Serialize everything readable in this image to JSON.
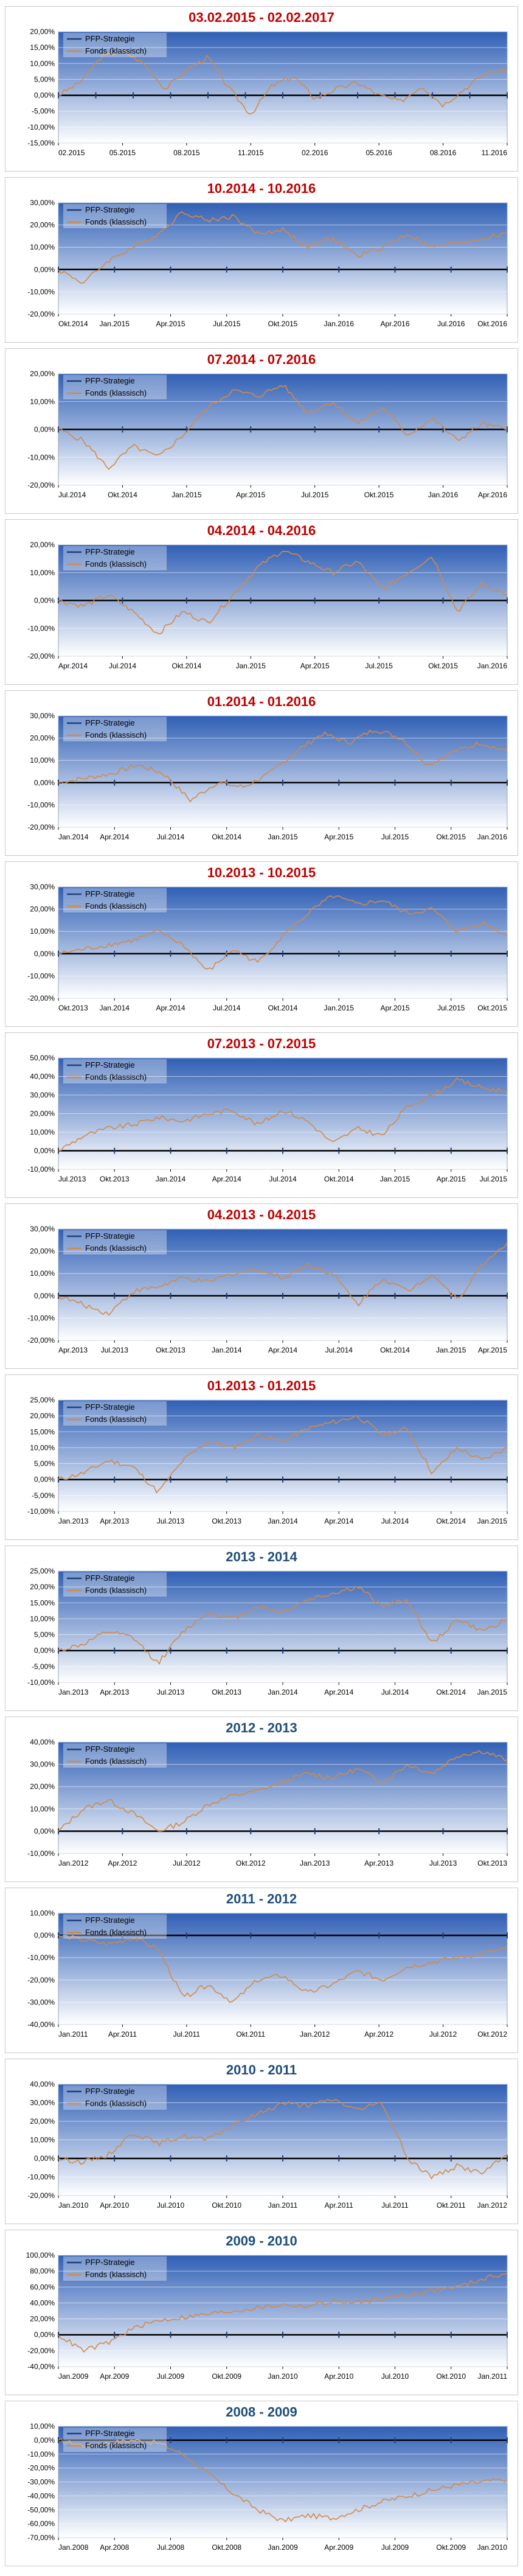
{
  "colors": {
    "title_red": "#c00000",
    "title_blue": "#1f4e79",
    "pfp_line": "#1f3f7a",
    "fonds_line": "#d08a4a",
    "plot_bg_top": "#2f5fb5",
    "plot_bg_bottom": "#ffffff",
    "zero_axis": "#000000"
  },
  "legend": {
    "pfp_label": "PFP-Strategie",
    "fonds_label": "Fonds (klassisch)"
  },
  "chart_data": [
    {
      "type": "line",
      "title": "03.02.2015 - 02.02.2017",
      "title_color": "red",
      "yticks": [
        "20,00%",
        "15,00%",
        "10,00%",
        "5,00%",
        "0,00%",
        "-5,00%",
        "-10,00%",
        "-15,00%"
      ],
      "ylim": [
        -15,
        20
      ],
      "xticks": [
        "02.2015",
        "05.2015",
        "08.2015",
        "11.2015",
        "02.2016",
        "05.2016",
        "08.2016",
        "11.2016"
      ],
      "series": [
        {
          "name": "PFP-Strategie",
          "values": [
            0,
            0,
            0,
            0,
            0,
            0,
            0,
            0,
            0,
            0,
            0,
            0,
            0
          ]
        },
        {
          "name": "Fonds (klassisch)",
          "values": [
            0,
            4,
            12,
            14,
            10,
            2,
            8,
            12,
            2,
            -6,
            3,
            6,
            -1,
            2,
            4,
            0,
            -2,
            3,
            -3,
            2,
            7,
            8
          ]
        }
      ]
    },
    {
      "type": "line",
      "title": "10.2014 - 10.2016",
      "title_color": "red",
      "yticks": [
        "30,00%",
        "20,00%",
        "10,00%",
        "0,00%",
        "-10,00%",
        "-20,00%"
      ],
      "ylim": [
        -20,
        30
      ],
      "xticks": [
        "Okt.2014",
        "Jan.2015",
        "Apr.2015",
        "Jul.2015",
        "Okt.2015",
        "Jan.2016",
        "Apr.2016",
        "Jul.2016",
        "Okt.2016"
      ],
      "series": [
        {
          "name": "PFP-Strategie",
          "values": [
            0,
            0,
            0,
            0,
            0,
            0,
            0,
            0,
            0
          ]
        },
        {
          "name": "Fonds (klassisch)",
          "values": [
            0,
            -6,
            4,
            10,
            16,
            26,
            22,
            24,
            16,
            18,
            10,
            14,
            6,
            10,
            16,
            10,
            12,
            14,
            16
          ]
        }
      ]
    },
    {
      "type": "line",
      "title": "07.2014 - 07.2016",
      "title_color": "red",
      "yticks": [
        "20,00%",
        "10,00%",
        "0,00%",
        "-10,00%",
        "-20,00%"
      ],
      "ylim": [
        -20,
        20
      ],
      "xticks": [
        "Jul.2014",
        "Okt.2014",
        "Jan.2015",
        "Apr.2015",
        "Jul.2015",
        "Okt.2015",
        "Jan.2016",
        "Apr.2016"
      ],
      "series": [
        {
          "name": "PFP-Strategie",
          "values": [
            0,
            0,
            0,
            0,
            0,
            0,
            0,
            0
          ]
        },
        {
          "name": "Fonds (klassisch)",
          "values": [
            0,
            -4,
            -14,
            -6,
            -10,
            -2,
            8,
            14,
            12,
            16,
            6,
            10,
            2,
            8,
            -2,
            4,
            -4,
            2,
            0
          ]
        }
      ]
    },
    {
      "type": "line",
      "title": "04.2014 - 04.2016",
      "title_color": "red",
      "yticks": [
        "20,00%",
        "10,00%",
        "0,00%",
        "-10,00%",
        "-20,00%"
      ],
      "ylim": [
        -20,
        20
      ],
      "xticks": [
        "Apr.2014",
        "Jul.2014",
        "Okt.2014",
        "Jan.2015",
        "Apr.2015",
        "Jul.2015",
        "Okt.2015",
        "Jan.2016"
      ],
      "series": [
        {
          "name": "PFP-Strategie",
          "values": [
            0,
            0,
            0,
            0,
            0,
            0,
            0,
            0
          ]
        },
        {
          "name": "Fonds (klassisch)",
          "values": [
            0,
            -2,
            2,
            -4,
            -12,
            -4,
            -8,
            2,
            12,
            18,
            14,
            10,
            14,
            4,
            10,
            16,
            -4,
            6,
            2
          ]
        }
      ]
    },
    {
      "type": "line",
      "title": "01.2014 - 01.2016",
      "title_color": "red",
      "yticks": [
        "30,00%",
        "20,00%",
        "10,00%",
        "0,00%",
        "-10,00%",
        "-20,00%"
      ],
      "ylim": [
        -20,
        30
      ],
      "xticks": [
        "Jan.2014",
        "Apr.2014",
        "Jul.2014",
        "Okt.2014",
        "Jan.2015",
        "Apr.2015",
        "Jul.2015",
        "Okt.2015",
        "Jan.2016"
      ],
      "series": [
        {
          "name": "PFP-Strategie",
          "values": [
            0,
            0,
            0,
            0,
            0,
            0,
            0,
            0,
            0
          ]
        },
        {
          "name": "Fonds (klassisch)",
          "values": [
            0,
            2,
            4,
            8,
            4,
            -8,
            0,
            -2,
            4,
            14,
            22,
            18,
            24,
            20,
            8,
            14,
            18,
            14
          ]
        }
      ]
    },
    {
      "type": "line",
      "title": "10.2013 - 10.2015",
      "title_color": "red",
      "yticks": [
        "30,00%",
        "20,00%",
        "10,00%",
        "0,00%",
        "-10,00%",
        "-20,00%"
      ],
      "ylim": [
        -20,
        30
      ],
      "xticks": [
        "Okt.2013",
        "Jan.2014",
        "Apr.2014",
        "Jul.2014",
        "Okt.2014",
        "Jan.2015",
        "Apr.2015",
        "Jul.2015",
        "Okt.2015"
      ],
      "series": [
        {
          "name": "PFP-Strategie",
          "values": [
            0,
            0,
            0,
            0,
            0,
            0,
            0,
            0,
            0
          ]
        },
        {
          "name": "Fonds (klassisch)",
          "values": [
            0,
            2,
            4,
            6,
            10,
            4,
            -8,
            2,
            -4,
            8,
            18,
            26,
            22,
            24,
            18,
            20,
            10,
            14,
            8
          ]
        }
      ]
    },
    {
      "type": "line",
      "title": "07.2013 - 07.2015",
      "title_color": "red",
      "yticks": [
        "50,00%",
        "40,00%",
        "30,00%",
        "20,00%",
        "10,00%",
        "0,00%",
        "-10,00%"
      ],
      "ylim": [
        -10,
        50
      ],
      "xticks": [
        "Jul.2013",
        "Okt.2013",
        "Jan.2014",
        "Apr.2014",
        "Jul.2014",
        "Okt.2014",
        "Jan.2015",
        "Apr.2015",
        "Jul.2015"
      ],
      "series": [
        {
          "name": "PFP-Strategie",
          "values": [
            0,
            0,
            0,
            0,
            0,
            0,
            0,
            0,
            0
          ]
        },
        {
          "name": "Fonds (klassisch)",
          "values": [
            0,
            8,
            12,
            14,
            18,
            16,
            20,
            22,
            14,
            22,
            16,
            4,
            12,
            8,
            24,
            30,
            38,
            34,
            32
          ]
        }
      ]
    },
    {
      "type": "line",
      "title": "04.2013 - 04.2015",
      "title_color": "red",
      "yticks": [
        "30,00%",
        "20,00%",
        "10,00%",
        "0,00%",
        "-10,00%",
        "-20,00%"
      ],
      "ylim": [
        -20,
        30
      ],
      "xticks": [
        "Apr.2013",
        "Jul.2013",
        "Okt.2013",
        "Jan.2014",
        "Apr.2014",
        "Jul.2014",
        "Okt.2014",
        "Jan.2015",
        "Apr.2015"
      ],
      "series": [
        {
          "name": "PFP-Strategie",
          "values": [
            0,
            0,
            0,
            0,
            0,
            0,
            0,
            0,
            0
          ]
        },
        {
          "name": "Fonds (klassisch)",
          "values": [
            0,
            -4,
            -8,
            2,
            4,
            8,
            6,
            10,
            12,
            8,
            14,
            10,
            -4,
            8,
            2,
            10,
            -2,
            14,
            24
          ]
        }
      ]
    },
    {
      "type": "line",
      "title": "01.2013 - 01.2015",
      "title_color": "red",
      "yticks": [
        "25,00%",
        "20,00%",
        "15,00%",
        "10,00%",
        "5,00%",
        "0,00%",
        "-5,00%",
        "-10,00%"
      ],
      "ylim": [
        -10,
        25
      ],
      "xticks": [
        "Jan.2013",
        "Apr.2013",
        "Jul.2013",
        "Okt.2013",
        "Jan.2014",
        "Apr.2014",
        "Jul.2014",
        "Okt.2014",
        "Jan.2015"
      ],
      "series": [
        {
          "name": "PFP-Strategie",
          "values": [
            0,
            0,
            0,
            0,
            0,
            0,
            0,
            0,
            0
          ]
        },
        {
          "name": "Fonds (klassisch)",
          "values": [
            0,
            2,
            6,
            4,
            -4,
            6,
            12,
            10,
            14,
            12,
            16,
            18,
            20,
            14,
            16,
            2,
            10,
            6,
            10
          ]
        }
      ]
    },
    {
      "type": "line",
      "title": "2013 - 2014",
      "title_color": "blue",
      "yticks": [
        "25,00%",
        "20,00%",
        "15,00%",
        "10,00%",
        "5,00%",
        "0,00%",
        "-5,00%",
        "-10,00%"
      ],
      "ylim": [
        -10,
        25
      ],
      "xticks": [
        "Jan.2013",
        "Apr.2013",
        "Jul.2013",
        "Okt.2013",
        "Jan.2014",
        "Apr.2014",
        "Jul.2014",
        "Okt.2014",
        "Jan.2015"
      ],
      "series": [
        {
          "name": "PFP-Strategie",
          "values": [
            0,
            0,
            0,
            0,
            0,
            0,
            0,
            0,
            0
          ]
        },
        {
          "name": "Fonds (klassisch)",
          "values": [
            0,
            2,
            6,
            4,
            -4,
            6,
            12,
            10,
            14,
            12,
            16,
            18,
            20,
            14,
            16,
            2,
            10,
            6,
            10
          ]
        }
      ]
    },
    {
      "type": "line",
      "title": "2012 - 2013",
      "title_color": "blue",
      "yticks": [
        "40,00%",
        "30,00%",
        "20,00%",
        "10,00%",
        "0,00%",
        "-10,00%"
      ],
      "ylim": [
        -10,
        40
      ],
      "xticks": [
        "Jan.2012",
        "Apr.2012",
        "Jul.2012",
        "Okt.2012",
        "Jan.2013",
        "Apr.2013",
        "Jul.2013",
        "Okt.2013"
      ],
      "series": [
        {
          "name": "PFP-Strategie",
          "values": [
            0,
            0,
            0,
            0,
            0,
            0,
            0,
            0
          ]
        },
        {
          "name": "Fonds (klassisch)",
          "values": [
            0,
            10,
            14,
            8,
            0,
            4,
            12,
            16,
            18,
            22,
            26,
            24,
            28,
            22,
            30,
            26,
            34,
            36,
            32
          ]
        }
      ]
    },
    {
      "type": "line",
      "title": "2011 - 2012",
      "title_color": "blue",
      "yticks": [
        "10,00%",
        "0,00%",
        "-10,00%",
        "-20,00%",
        "-30,00%",
        "-40,00%"
      ],
      "ylim": [
        -40,
        10
      ],
      "xticks": [
        "Jan.2011",
        "Apr.2011",
        "Jul.2011",
        "Okt.2011",
        "Jan.2012",
        "Apr.2012",
        "Jul.2012",
        "Okt.2012"
      ],
      "series": [
        {
          "name": "PFP-Strategie",
          "values": [
            0,
            0,
            0,
            0,
            0,
            0,
            0,
            0
          ]
        },
        {
          "name": "Fonds (klassisch)",
          "values": [
            0,
            -2,
            -4,
            -1,
            -6,
            -28,
            -22,
            -30,
            -20,
            -18,
            -26,
            -22,
            -16,
            -20,
            -14,
            -12,
            -10,
            -8,
            -6
          ]
        }
      ]
    },
    {
      "type": "line",
      "title": "2010 - 2011",
      "title_color": "blue",
      "yticks": [
        "40,00%",
        "30,00%",
        "20,00%",
        "10,00%",
        "0,00%",
        "-10,00%",
        "-20,00%"
      ],
      "ylim": [
        -20,
        40
      ],
      "xticks": [
        "Jan.2010",
        "Apr.2010",
        "Jul.2010",
        "Okt.2010",
        "Jan.2011",
        "Apr.2011",
        "Jul.2011",
        "Okt.2011",
        "Jan.2012"
      ],
      "series": [
        {
          "name": "PFP-Strategie",
          "values": [
            0,
            0,
            0,
            0,
            0,
            0,
            0,
            0,
            0
          ]
        },
        {
          "name": "Fonds (klassisch)",
          "values": [
            0,
            -2,
            2,
            14,
            8,
            12,
            10,
            18,
            24,
            30,
            28,
            32,
            26,
            30,
            0,
            -10,
            -4,
            -8,
            2
          ]
        }
      ]
    },
    {
      "type": "line",
      "title": "2009 - 2010",
      "title_color": "blue",
      "yticks": [
        "100,00%",
        "80,00%",
        "60,00%",
        "40,00%",
        "20,00%",
        "0,00%",
        "-20,00%",
        "-40,00%"
      ],
      "ylim": [
        -40,
        100
      ],
      "xticks": [
        "Jan.2009",
        "Apr.2009",
        "Jul.2009",
        "Okt.2009",
        "Jan.2010",
        "Apr.2010",
        "Jul.2010",
        "Okt.2010",
        "Jan.2011"
      ],
      "series": [
        {
          "name": "PFP-Strategie",
          "values": [
            0,
            0,
            0,
            0,
            0,
            0,
            0,
            0,
            0
          ]
        },
        {
          "name": "Fonds (klassisch)",
          "values": [
            0,
            -20,
            -10,
            8,
            18,
            22,
            26,
            30,
            34,
            38,
            36,
            42,
            40,
            46,
            50,
            56,
            60,
            70,
            78
          ]
        }
      ]
    },
    {
      "type": "line",
      "title": "2008 - 2009",
      "title_color": "blue",
      "yticks": [
        "10,00%",
        "0,00%",
        "-10,00%",
        "-20,00%",
        "-30,00%",
        "-40,00%",
        "-50,00%",
        "-60,00%",
        "-70,00%"
      ],
      "ylim": [
        -70,
        10
      ],
      "xticks": [
        "Jan.2008",
        "Apr.2008",
        "Jul.2008",
        "Okt.2008",
        "Jan.2009",
        "Apr.2009",
        "Jul.2009",
        "Okt.2009",
        "Jan.2010"
      ],
      "series": [
        {
          "name": "PFP-Strategie",
          "values": [
            0,
            0,
            0,
            0,
            0,
            0,
            0,
            0,
            0
          ]
        },
        {
          "name": "Fonds (klassisch)",
          "values": [
            0,
            -4,
            -2,
            0,
            -2,
            -10,
            -24,
            -38,
            -50,
            -58,
            -54,
            -56,
            -50,
            -44,
            -40,
            -36,
            -32,
            -30,
            -28
          ]
        }
      ]
    }
  ]
}
